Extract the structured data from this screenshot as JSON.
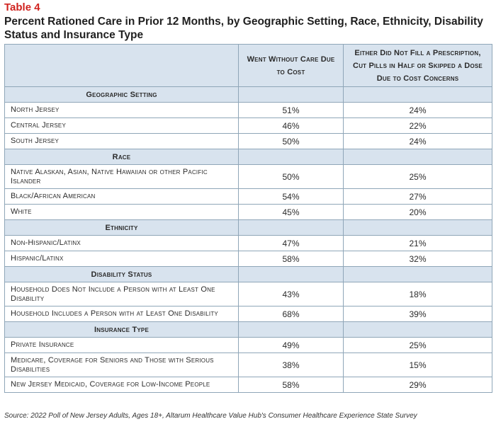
{
  "table_label": "Table 4",
  "title": "Percent Rationed Care in Prior 12 Months, by Geographic Setting, Race, Ethnicity, Disability Status and Insurance Type",
  "columns": {
    "col1": "Went Without Care Due to Cost",
    "col2": "Either Did Not Fill a Prescription, Cut Pills in Half or Skipped a Dose Due to Cost Concerns"
  },
  "sections": [
    {
      "heading": "Geographic Setting",
      "rows": [
        {
          "label": "North Jersey",
          "v1": "51%",
          "v2": "24%"
        },
        {
          "label": "Central Jersey",
          "v1": "46%",
          "v2": "22%"
        },
        {
          "label": "South Jersey",
          "v1": "50%",
          "v2": "24%"
        }
      ]
    },
    {
      "heading": "Race",
      "rows": [
        {
          "label": "Native Alaskan, Asian, Native Hawaiian or other Pacific Islander",
          "v1": "50%",
          "v2": "25%"
        },
        {
          "label": "Black/African American",
          "v1": "54%",
          "v2": "27%"
        },
        {
          "label": "White",
          "v1": "45%",
          "v2": "20%"
        }
      ]
    },
    {
      "heading": "Ethnicity",
      "rows": [
        {
          "label": "Non-Hispanic/Latinx",
          "v1": "47%",
          "v2": "21%"
        },
        {
          "label": "Hispanic/Latinx",
          "v1": "58%",
          "v2": "32%"
        }
      ]
    },
    {
      "heading": "Disability Status",
      "rows": [
        {
          "label": "Household Does Not Include a Person with at Least One Disability",
          "v1": "43%",
          "v2": "18%"
        },
        {
          "label": "Household Includes a Person with at Least One Disability",
          "v1": "68%",
          "v2": "39%"
        }
      ]
    },
    {
      "heading": "Insurance Type",
      "rows": [
        {
          "label": "Private Insurance",
          "v1": "49%",
          "v2": "25%"
        },
        {
          "label": "Medicare, Coverage for Seniors and Those with Serious Disabilities",
          "v1": "38%",
          "v2": "15%"
        },
        {
          "label": "New Jersey Medicaid, Coverage for Low-Income People",
          "v1": "58%",
          "v2": "29%"
        }
      ]
    }
  ],
  "source": "Source: 2022 Poll of New Jersey Adults, Ages 18+, Altarum Healthcare Value Hub's Consumer Healthcare Experience State Survey"
}
